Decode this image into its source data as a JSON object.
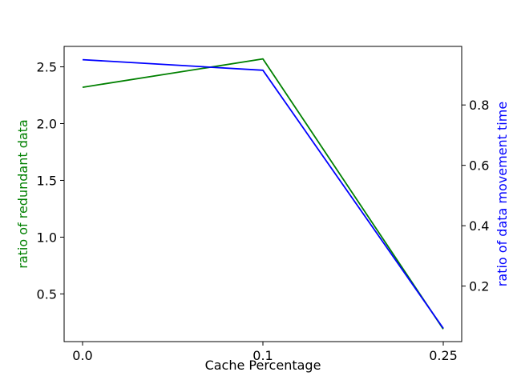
{
  "chart_data": {
    "type": "line",
    "categories": [
      "0.0",
      "0.1",
      "0.25"
    ],
    "xlabel": "Cache Percentage",
    "series": [
      {
        "axis": "left",
        "color": "#008000",
        "values": [
          2.32,
          2.57,
          0.19
        ]
      },
      {
        "axis": "right",
        "color": "#0000ff",
        "values": [
          0.95,
          0.915,
          0.06
        ]
      }
    ],
    "y_left": {
      "label": "ratio of redundant data",
      "color": "#008000",
      "ylim": [
        0.08,
        2.68
      ],
      "ticks": [
        0.5,
        1.0,
        1.5,
        2.0,
        2.5
      ],
      "tick_labels": [
        "0.5",
        "1.0",
        "1.5",
        "2.0",
        "2.5"
      ]
    },
    "y_right": {
      "label": "ratio of data movement time",
      "color": "#0000ff",
      "ylim": [
        0.016,
        0.994
      ],
      "ticks": [
        0.2,
        0.4,
        0.6,
        0.8
      ],
      "tick_labels": [
        "0.2",
        "0.4",
        "0.6",
        "0.8"
      ]
    },
    "grid": false,
    "legend": "none"
  }
}
